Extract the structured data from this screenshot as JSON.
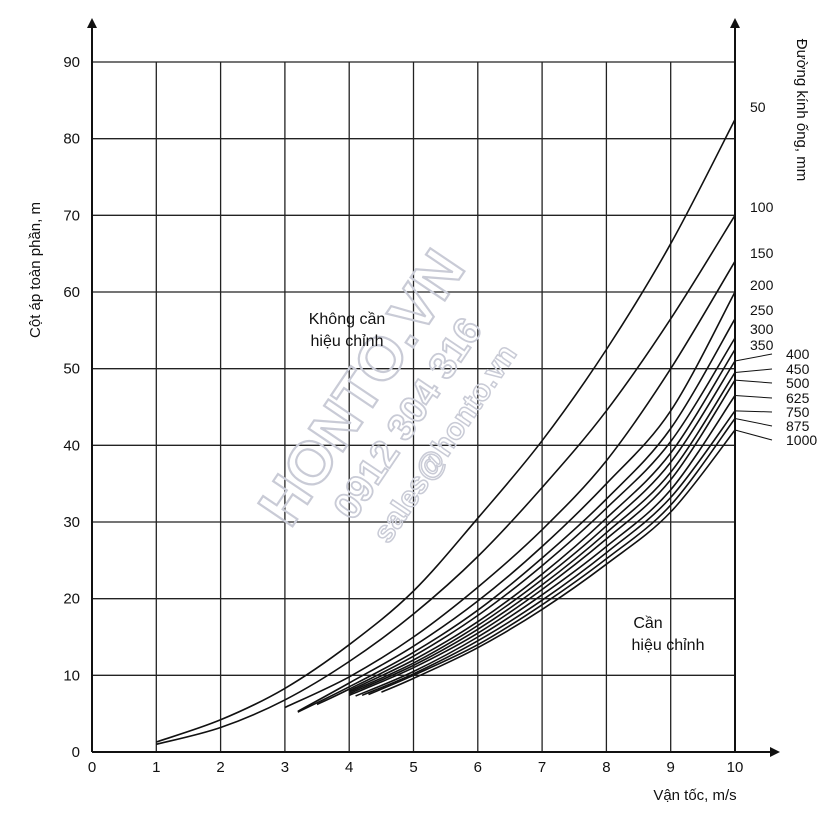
{
  "chart_data": {
    "type": "line",
    "xlabel": "Vận tốc, m/s",
    "ylabel": "Cột áp toàn phần, m",
    "y2label": "Đường kính ống, mm",
    "xlim": [
      0,
      10
    ],
    "ylim": [
      0,
      90
    ],
    "x_ticks": [
      "0",
      "1",
      "2",
      "3",
      "4",
      "5",
      "6",
      "7",
      "8",
      "9",
      "10"
    ],
    "y_ticks": [
      "0",
      "10",
      "20",
      "30",
      "40",
      "50",
      "60",
      "70",
      "80",
      "90"
    ],
    "grid": true,
    "region_no_correction": "Không cần hiệu chỉnh",
    "region_correction": "Cần hiệu chỉnh",
    "series": [
      {
        "name": "50",
        "x": [
          1,
          2,
          3,
          4,
          5,
          6,
          7,
          8,
          9,
          10
        ],
        "y": [
          1.3,
          4.2,
          8.3,
          14,
          21,
          30.5,
          40.6,
          52.5,
          66.3,
          82.5
        ]
      },
      {
        "name": "100",
        "x": [
          1,
          2,
          3,
          4,
          5,
          6,
          7,
          8,
          9,
          10
        ],
        "y": [
          1.0,
          3.2,
          6.8,
          11.8,
          18,
          25.5,
          34.5,
          44.5,
          56.5,
          70
        ]
      },
      {
        "name": "150",
        "x": [
          3,
          4,
          5,
          6,
          7,
          8,
          9,
          10
        ],
        "y": [
          5.8,
          9.8,
          15,
          21.5,
          29,
          38,
          50,
          64
        ]
      },
      {
        "name": "200",
        "x": [
          3.2,
          4,
          5,
          6,
          7,
          8,
          9,
          10
        ],
        "y": [
          5.3,
          9,
          13.8,
          19.7,
          26.8,
          35,
          44.5,
          60
        ]
      },
      {
        "name": "250",
        "x": [
          3.2,
          4,
          5,
          6,
          7,
          8,
          9,
          10
        ],
        "y": [
          5.2,
          8.5,
          13,
          18.5,
          25.3,
          33,
          42.2,
          56.5
        ]
      },
      {
        "name": "300",
        "x": [
          3.5,
          4,
          5,
          6,
          7,
          8,
          9,
          10
        ],
        "y": [
          6.2,
          8.2,
          12.5,
          17.8,
          24.3,
          31.8,
          40.5,
          54
        ]
      },
      {
        "name": "350",
        "x": [
          4,
          5,
          6,
          7,
          8,
          9,
          10
        ],
        "y": [
          8.0,
          12,
          17,
          23.2,
          30.5,
          39,
          52.5
        ]
      },
      {
        "name": "400",
        "x": [
          4,
          5,
          6,
          7,
          8,
          9,
          10
        ],
        "y": [
          7.8,
          11.6,
          16.5,
          22.5,
          29.5,
          37.8,
          51
        ]
      },
      {
        "name": "450",
        "x": [
          4,
          5,
          6,
          7,
          8,
          9,
          10
        ],
        "y": [
          7.6,
          11.3,
          16,
          21.8,
          28.6,
          36.5,
          49.5
        ]
      },
      {
        "name": "500",
        "x": [
          4,
          5,
          6,
          7,
          8,
          9,
          10
        ],
        "y": [
          7.4,
          11,
          15.5,
          21.2,
          27.8,
          35.5,
          48.5
        ]
      },
      {
        "name": "625",
        "x": [
          4.1,
          5,
          6,
          7,
          8,
          9,
          10
        ],
        "y": [
          7.3,
          10.5,
          15,
          20.5,
          26.8,
          34.2,
          46.5
        ]
      },
      {
        "name": "750",
        "x": [
          4.2,
          5,
          6,
          7,
          8,
          9,
          10
        ],
        "y": [
          7.4,
          10.2,
          14.5,
          19.8,
          26,
          33.2,
          44.5
        ]
      },
      {
        "name": "875",
        "x": [
          4.3,
          5,
          6,
          7,
          8,
          9,
          10
        ],
        "y": [
          7.5,
          10,
          14,
          19.2,
          25.2,
          32.2,
          43.5
        ]
      },
      {
        "name": "1000",
        "x": [
          4.5,
          5,
          6,
          7,
          8,
          9,
          10
        ],
        "y": [
          7.8,
          9.6,
          13.6,
          18.6,
          24.5,
          31.3,
          42
        ]
      }
    ]
  },
  "watermark": {
    "line1": "HONTO.VN",
    "line2": "0912 304 316",
    "line3": "sales@honto.vn"
  }
}
